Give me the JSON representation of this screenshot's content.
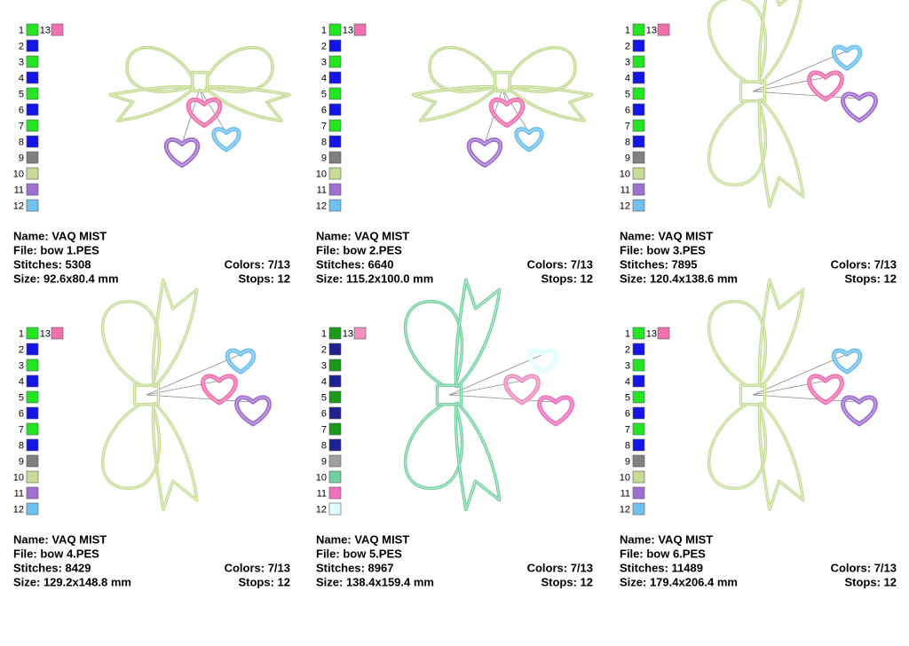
{
  "panels": [
    {
      "swatches": [
        {
          "number": 1,
          "color": "#22e622"
        },
        {
          "number": 2,
          "color": "#1414e6"
        },
        {
          "number": 3,
          "color": "#22e622"
        },
        {
          "number": 4,
          "color": "#1414e6"
        },
        {
          "number": 5,
          "color": "#22e622"
        },
        {
          "number": 6,
          "color": "#1414e6"
        },
        {
          "number": 7,
          "color": "#22e622"
        },
        {
          "number": 8,
          "color": "#1414e6"
        },
        {
          "number": 9,
          "color": "#808080"
        },
        {
          "number": 10,
          "color": "#c6dc96"
        },
        {
          "number": 11,
          "color": "#a070d0"
        },
        {
          "number": 12,
          "color": "#70c0f0"
        },
        {
          "number": 13,
          "color": "#f070b0"
        }
      ],
      "name": "Name: VAQ MIST",
      "file": "File: bow 1.PES",
      "stitches": "Stitches: 5308",
      "size": "Size: 92.6x80.4 mm",
      "colors": "Colors: 7/13",
      "stops": "Stops: 12"
    },
    {
      "swatches": [
        {
          "number": 1,
          "color": "#22e622"
        },
        {
          "number": 2,
          "color": "#1414e6"
        },
        {
          "number": 3,
          "color": "#22e622"
        },
        {
          "number": 4,
          "color": "#1414e6"
        },
        {
          "number": 5,
          "color": "#22e622"
        },
        {
          "number": 6,
          "color": "#1414e6"
        },
        {
          "number": 7,
          "color": "#22e622"
        },
        {
          "number": 8,
          "color": "#1414e6"
        },
        {
          "number": 9,
          "color": "#808080"
        },
        {
          "number": 10,
          "color": "#c6dc96"
        },
        {
          "number": 11,
          "color": "#a070d0"
        },
        {
          "number": 12,
          "color": "#70c0f0"
        },
        {
          "number": 13,
          "color": "#f070b0"
        }
      ],
      "name": "Name: VAQ MIST",
      "file": "File: bow 2.PES",
      "stitches": "Stitches: 6640",
      "size": "Size: 115.2x100.0 mm",
      "colors": "Colors: 7/13",
      "stops": "Stops: 12"
    },
    {
      "swatches": [
        {
          "number": 1,
          "color": "#22e622"
        },
        {
          "number": 2,
          "color": "#1414e6"
        },
        {
          "number": 3,
          "color": "#22e622"
        },
        {
          "number": 4,
          "color": "#1414e6"
        },
        {
          "number": 5,
          "color": "#22e622"
        },
        {
          "number": 6,
          "color": "#1414e6"
        },
        {
          "number": 7,
          "color": "#22e622"
        },
        {
          "number": 8,
          "color": "#1414e6"
        },
        {
          "number": 9,
          "color": "#808080"
        },
        {
          "number": 10,
          "color": "#c6dc96"
        },
        {
          "number": 11,
          "color": "#a070d0"
        },
        {
          "number": 12,
          "color": "#70c0f0"
        },
        {
          "number": 13,
          "color": "#f070b0"
        }
      ],
      "name": "Name: VAQ MIST",
      "file": "File: bow 3.PES",
      "stitches": "Stitches: 7895",
      "size": "Size: 120.4x138.6 mm",
      "colors": "Colors: 7/13",
      "stops": "Stops: 12"
    },
    {
      "swatches": [
        {
          "number": 1,
          "color": "#22e622"
        },
        {
          "number": 2,
          "color": "#1414e6"
        },
        {
          "number": 3,
          "color": "#22e622"
        },
        {
          "number": 4,
          "color": "#1414e6"
        },
        {
          "number": 5,
          "color": "#22e622"
        },
        {
          "number": 6,
          "color": "#1414e6"
        },
        {
          "number": 7,
          "color": "#22e622"
        },
        {
          "number": 8,
          "color": "#1414e6"
        },
        {
          "number": 9,
          "color": "#808080"
        },
        {
          "number": 10,
          "color": "#c6dc96"
        },
        {
          "number": 11,
          "color": "#a070d0"
        },
        {
          "number": 12,
          "color": "#70c0f0"
        },
        {
          "number": 13,
          "color": "#f070b0"
        }
      ],
      "name": "Name: VAQ MIST",
      "file": "File: bow 4.PES",
      "stitches": "Stitches: 8429",
      "size": "Size: 129.2x148.8 mm",
      "colors": "Colors: 7/13",
      "stops": "Stops: 12"
    },
    {
      "swatches": [
        {
          "number": 1,
          "color": "#1a9a1a"
        },
        {
          "number": 2,
          "color": "#202090"
        },
        {
          "number": 3,
          "color": "#1a9a1a"
        },
        {
          "number": 4,
          "color": "#202090"
        },
        {
          "number": 5,
          "color": "#1a9a1a"
        },
        {
          "number": 6,
          "color": "#202090"
        },
        {
          "number": 7,
          "color": "#1a9a1a"
        },
        {
          "number": 8,
          "color": "#202090"
        },
        {
          "number": 9,
          "color": "#a0a0a0"
        },
        {
          "number": 10,
          "color": "#70d0a0"
        },
        {
          "number": 11,
          "color": "#f070c0"
        },
        {
          "number": 12,
          "color": "#e0ffff"
        },
        {
          "number": 13,
          "color": "#f090c0"
        }
      ],
      "name": "Name: VAQ MIST",
      "file": "File: bow 5.PES",
      "stitches": "Stitches: 8967",
      "size": "Size: 138.4x159.4 mm",
      "colors": "Colors: 7/13",
      "stops": "Stops: 12"
    },
    {
      "swatches": [
        {
          "number": 1,
          "color": "#22e622"
        },
        {
          "number": 2,
          "color": "#1414e6"
        },
        {
          "number": 3,
          "color": "#22e622"
        },
        {
          "number": 4,
          "color": "#1414e6"
        },
        {
          "number": 5,
          "color": "#22e622"
        },
        {
          "number": 6,
          "color": "#1414e6"
        },
        {
          "number": 7,
          "color": "#22e622"
        },
        {
          "number": 8,
          "color": "#1414e6"
        },
        {
          "number": 9,
          "color": "#808080"
        },
        {
          "number": 10,
          "color": "#c6dc96"
        },
        {
          "number": 11,
          "color": "#a070d0"
        },
        {
          "number": 12,
          "color": "#70c0f0"
        },
        {
          "number": 13,
          "color": "#f070b0"
        }
      ],
      "name": "Name: VAQ MIST",
      "file": "File: bow 6.PES",
      "stitches": "Stitches: 11489",
      "size": "Size: 179.4x206.4 mm",
      "colors": "Colors: 7/13",
      "stops": "Stops: 12"
    }
  ]
}
